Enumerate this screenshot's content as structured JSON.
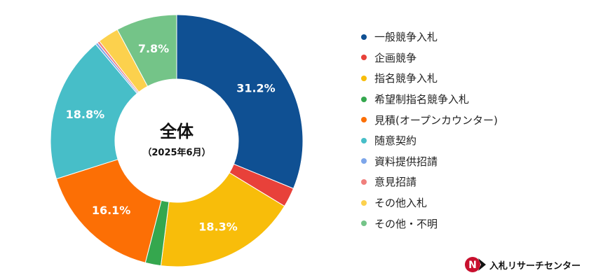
{
  "chart_data": {
    "type": "pie",
    "title": "",
    "center_label": {
      "title": "全体",
      "subtitle": "（2025年6月）"
    },
    "categories": [
      "一般競争入札",
      "企画競争",
      "指名競争入札",
      "希望制指名競争入札",
      "見積(オープンカウンター)",
      "随意契約",
      "資料提供招請",
      "意見招請",
      "その他入札",
      "その他・不明"
    ],
    "values": [
      31.2,
      2.5,
      18.3,
      2.0,
      16.1,
      18.8,
      0.3,
      0.3,
      2.7,
      7.8
    ],
    "data_labels": [
      "31.2%",
      "",
      "18.3%",
      "",
      "16.1%",
      "18.8%",
      "",
      "",
      "",
      "7.8%"
    ],
    "colors": [
      "#0F5093",
      "#E8413A",
      "#F8BD0A",
      "#35A74E",
      "#FC6F05",
      "#47BEC8",
      "#7DA6EA",
      "#F07F7C",
      "#FCD14D",
      "#74C488"
    ],
    "legend_position": "right",
    "start_angle_deg": 0,
    "direction": "clockwise"
  },
  "brand": {
    "name": "入札リサーチセンター",
    "logo_letters": "N",
    "logo_icon": "nr-logo-icon"
  }
}
